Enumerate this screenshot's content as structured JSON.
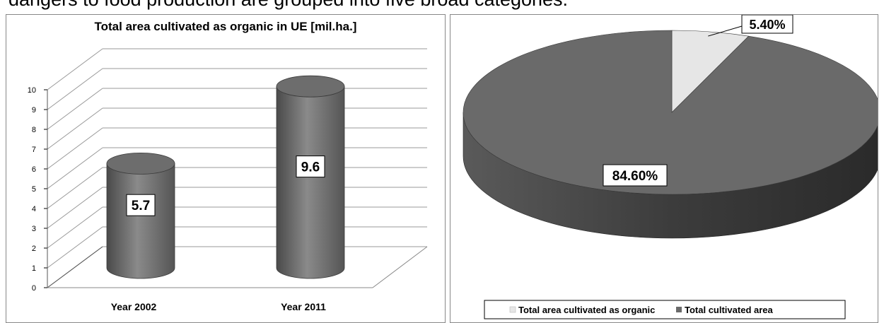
{
  "page_text": "dangers to food production are grouped into five broad categories.",
  "chart_data": [
    {
      "type": "bar",
      "title": "Total area cultivated as organic in UE  [mil.ha.]",
      "categories": [
        "Year 2002",
        "Year 2011"
      ],
      "values": [
        5.7,
        9.6
      ],
      "value_labels": [
        "5.7",
        "9.6"
      ],
      "ylim": [
        0,
        10
      ],
      "yticks": [
        "0",
        "1",
        "2",
        "3",
        "4",
        "5",
        "6",
        "7",
        "8",
        "9",
        "10"
      ],
      "xlabel": "",
      "ylabel": "",
      "grid": true,
      "style": "3d-cylinder",
      "color": "#6b6b6b"
    },
    {
      "type": "pie",
      "title": "",
      "labels": [
        "Total area cultivated as organic",
        "Total cultivated area"
      ],
      "values": [
        5.4,
        84.6
      ],
      "value_labels": [
        "5.40%",
        "84.60%"
      ],
      "colors": [
        "#e6e6e6",
        "#6a6a6a"
      ],
      "legend": "bottom",
      "style": "3d"
    }
  ]
}
